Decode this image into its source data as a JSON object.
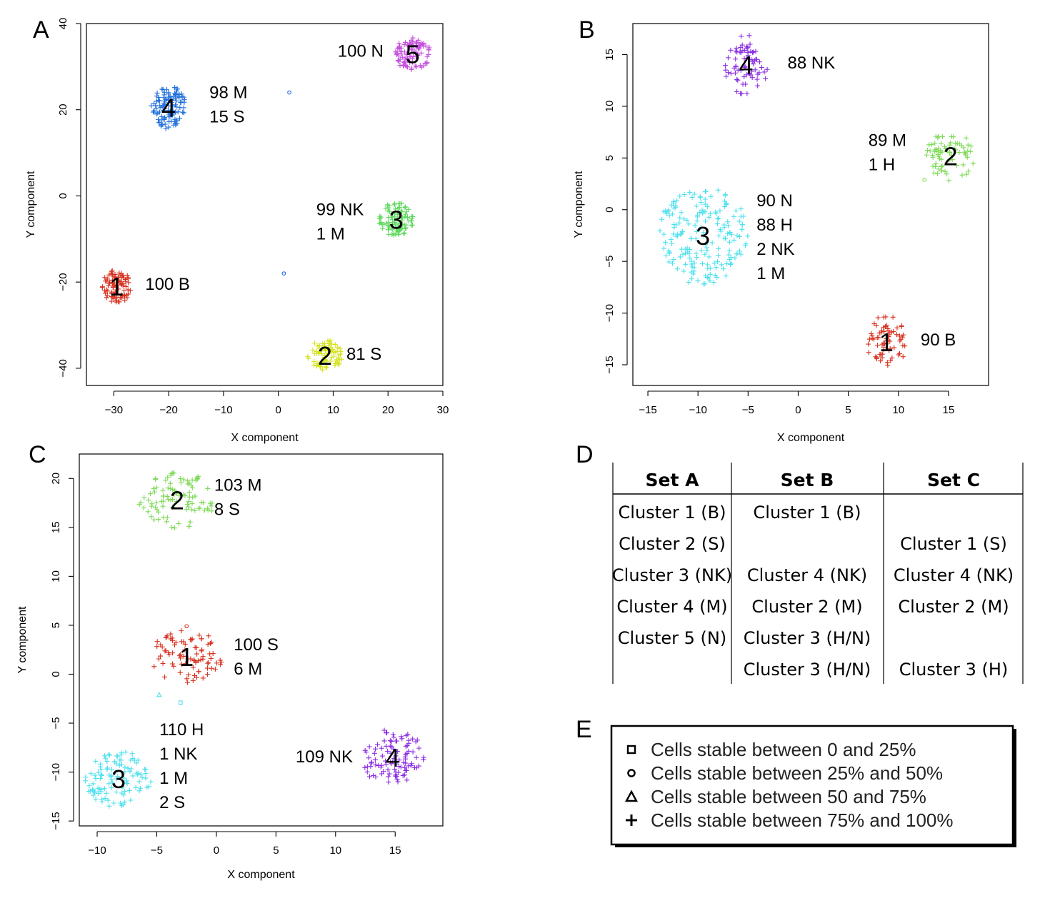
{
  "panels": [
    {
      "letter": "A"
    },
    {
      "letter": "B"
    },
    {
      "letter": "C"
    },
    {
      "letter": "D"
    },
    {
      "letter": "E"
    }
  ],
  "chart_data": [
    {
      "panel": "A",
      "type": "scatter",
      "xlabel": "X component",
      "ylabel": "Y component",
      "xlim": [
        -35,
        30
      ],
      "ylim": [
        -44,
        40
      ],
      "xticks": [
        -30,
        -20,
        -10,
        0,
        10,
        20,
        30
      ],
      "yticks": [
        -40,
        -20,
        0,
        20,
        40
      ],
      "clusters": [
        {
          "num": "1",
          "color": "#d7301f",
          "center": [
            -29.5,
            -21
          ],
          "radius": [
            2.6,
            4
          ],
          "n": 90,
          "labels": [
            "100 B"
          ]
        },
        {
          "num": "2",
          "color": "#d4e31b",
          "center": [
            8.5,
            -37
          ],
          "radius": [
            3.2,
            3.7
          ],
          "n": 80,
          "labels": [
            "81 S"
          ]
        },
        {
          "num": "3",
          "color": "#5ed75e",
          "center": [
            21.5,
            -5.5
          ],
          "radius": [
            3.2,
            4
          ],
          "n": 95,
          "labels": [
            "99 NK",
            "1 M"
          ]
        },
        {
          "num": "4",
          "color": "#1f6fdc",
          "center": [
            -20,
            20.5
          ],
          "radius": [
            3.2,
            5
          ],
          "n": 110,
          "labels": [
            "98 M",
            "15 S"
          ]
        },
        {
          "num": "5",
          "color": "#c34fdc",
          "center": [
            24.5,
            33
          ],
          "radius": [
            3.3,
            3.8
          ],
          "n": 95,
          "labels": [
            "100 N"
          ]
        }
      ],
      "outliers": [
        {
          "x": 2,
          "y": 24,
          "color": "#1f6fdc",
          "shape": "circle"
        },
        {
          "x": 1,
          "y": -18,
          "color": "#1f6fdc",
          "shape": "circle"
        }
      ]
    },
    {
      "panel": "B",
      "type": "scatter",
      "xlabel": "X component",
      "ylabel": "Y component",
      "xlim": [
        -16.5,
        19
      ],
      "ylim": [
        -17,
        18
      ],
      "xticks": [
        -15,
        -10,
        -5,
        0,
        5,
        10,
        15
      ],
      "yticks": [
        -15,
        -10,
        -5,
        0,
        5,
        10,
        15
      ],
      "clusters": [
        {
          "num": "1",
          "color": "#d7301f",
          "center": [
            8.8,
            -12.8
          ],
          "radius": [
            2,
            2.6
          ],
          "n": 70,
          "labels": [
            "90 B"
          ]
        },
        {
          "num": "2",
          "color": "#7ed957",
          "center": [
            15.2,
            5.2
          ],
          "radius": [
            2.4,
            2.4
          ],
          "n": 75,
          "labels": [
            "89 M",
            "1 H"
          ]
        },
        {
          "num": "3",
          "color": "#4fe0ee",
          "center": [
            -9.5,
            -2.5
          ],
          "radius": [
            4.5,
            4.8
          ],
          "n": 190,
          "labels": [
            "90 N",
            "88 H",
            "2 NK",
            "1 M"
          ]
        },
        {
          "num": "4",
          "color": "#8a2be2",
          "center": [
            -5.2,
            14
          ],
          "radius": [
            2.3,
            2.9
          ],
          "n": 70,
          "labels": [
            "88 NK"
          ]
        }
      ],
      "outliers": [
        {
          "x": 12.6,
          "y": 2.9,
          "color": "#7ed957",
          "shape": "circle"
        }
      ]
    },
    {
      "panel": "C",
      "type": "scatter",
      "xlabel": "X component",
      "ylabel": "Y component",
      "xlim": [
        -11.5,
        19
      ],
      "ylim": [
        -15.5,
        22.5
      ],
      "xticks": [
        -10,
        -5,
        0,
        5,
        10,
        15
      ],
      "yticks": [
        -15,
        -10,
        -5,
        0,
        5,
        10,
        15,
        20
      ],
      "clusters": [
        {
          "num": "1",
          "color": "#d7301f",
          "center": [
            -2.5,
            1.8
          ],
          "radius": [
            3,
            2.7
          ],
          "n": 85,
          "labels": [
            "100 S",
            "6 M"
          ]
        },
        {
          "num": "2",
          "color": "#7ed957",
          "center": [
            -3.3,
            17.8
          ],
          "radius": [
            3.2,
            2.9
          ],
          "n": 95,
          "labels": [
            "103 M",
            "8 S"
          ]
        },
        {
          "num": "3",
          "color": "#4fe0ee",
          "center": [
            -8.2,
            -10.7
          ],
          "radius": [
            2.8,
            2.9
          ],
          "n": 110,
          "labels": [
            "110 H",
            "1 NK",
            "1 M",
            "2 S"
          ]
        },
        {
          "num": "4",
          "color": "#8a2be2",
          "center": [
            14.8,
            -8.5
          ],
          "radius": [
            2.7,
            2.9
          ],
          "n": 100,
          "labels": [
            "109 NK"
          ]
        }
      ],
      "outliers": [
        {
          "x": -4.8,
          "y": -2.1,
          "color": "#4fe0ee",
          "shape": "triangle"
        },
        {
          "x": -3,
          "y": -2.9,
          "color": "#4fe0ee",
          "shape": "square"
        },
        {
          "x": -2.5,
          "y": 4.9,
          "color": "#d7301f",
          "shape": "circle"
        }
      ]
    }
  ],
  "table": {
    "headers": [
      "Set A",
      "Set B",
      "Set C"
    ],
    "rows": [
      [
        "Cluster 1 (B)",
        "Cluster 1 (B)",
        ""
      ],
      [
        "Cluster 2 (S)",
        "",
        "Cluster 1 (S)"
      ],
      [
        "Cluster 3 (NK)",
        "Cluster 4 (NK)",
        "Cluster 4 (NK)"
      ],
      [
        "Cluster 4 (M)",
        "Cluster 2 (M)",
        "Cluster 2 (M)"
      ],
      [
        "Cluster 5 (N)",
        "Cluster 3 (H/N)",
        ""
      ],
      [
        "",
        "Cluster 3 (H/N)",
        "Cluster 3 (H)"
      ]
    ]
  },
  "legend": {
    "items": [
      {
        "shape": "square",
        "label": "Cells stable between 0 and 25%"
      },
      {
        "shape": "circle",
        "label": "Cells stable between 25% and 50%"
      },
      {
        "shape": "triangle",
        "label": "Cells stable between 50 and 75%"
      },
      {
        "shape": "plus",
        "label": "Cells stable between 75% and 100%"
      }
    ]
  }
}
